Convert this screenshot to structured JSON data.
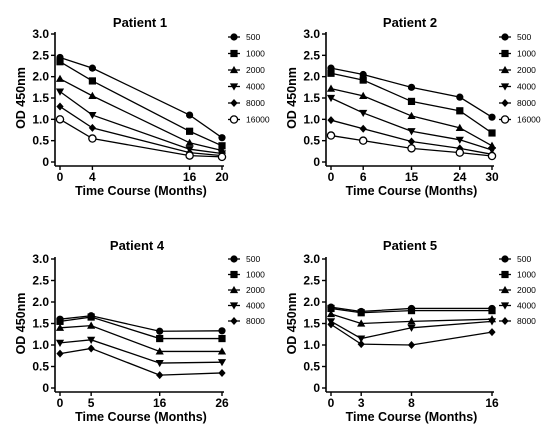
{
  "chart_data": [
    {
      "type": "line",
      "title": "Patient 1",
      "xlabel": "Time Course (Months)",
      "ylabel": "OD 450nm",
      "x": [
        0,
        4,
        16,
        20
      ],
      "x_ticks": [
        "0",
        "4",
        "16",
        "20"
      ],
      "y_ticks": [
        "0",
        "0.5",
        "1.0",
        "1.5",
        "2.0",
        "2.5",
        "3.0"
      ],
      "xlim": [
        0,
        20
      ],
      "ylim": [
        0,
        3.0
      ],
      "legend": "right",
      "series": [
        {
          "name": "500",
          "marker": "circle",
          "values": [
            2.45,
            2.2,
            1.1,
            0.57
          ]
        },
        {
          "name": "1000",
          "marker": "square",
          "values": [
            2.35,
            1.9,
            0.72,
            0.38
          ]
        },
        {
          "name": "2000",
          "marker": "triangle",
          "values": [
            1.95,
            1.55,
            0.45,
            0.27
          ]
        },
        {
          "name": "4000",
          "marker": "triangle-down",
          "values": [
            1.65,
            1.1,
            0.3,
            0.2
          ]
        },
        {
          "name": "8000",
          "marker": "diamond",
          "values": [
            1.3,
            0.8,
            0.22,
            0.15
          ]
        },
        {
          "name": "16000",
          "marker": "circle-open",
          "values": [
            1.0,
            0.55,
            0.15,
            0.12
          ]
        }
      ]
    },
    {
      "type": "line",
      "title": "Patient 2",
      "xlabel": "Time Course (Months)",
      "ylabel": "OD 450nm",
      "x": [
        0,
        6,
        15,
        24,
        30
      ],
      "x_ticks": [
        "0",
        "6",
        "15",
        "24",
        "30"
      ],
      "y_ticks": [
        "0",
        "0.5",
        "1.0",
        "1.5",
        "2.0",
        "2.5",
        "3.0"
      ],
      "xlim": [
        0,
        30
      ],
      "ylim": [
        0,
        3.0
      ],
      "legend": "right",
      "series": [
        {
          "name": "500",
          "marker": "circle",
          "values": [
            2.2,
            2.05,
            1.75,
            1.52,
            1.05
          ]
        },
        {
          "name": "1000",
          "marker": "square",
          "values": [
            2.08,
            1.92,
            1.42,
            1.2,
            0.68
          ]
        },
        {
          "name": "2000",
          "marker": "triangle",
          "values": [
            1.72,
            1.55,
            1.08,
            0.8,
            0.38
          ]
        },
        {
          "name": "4000",
          "marker": "triangle-down",
          "values": [
            1.5,
            1.15,
            0.72,
            0.52,
            0.28
          ]
        },
        {
          "name": "8000",
          "marker": "diamond",
          "values": [
            0.98,
            0.78,
            0.48,
            0.32,
            0.18
          ]
        },
        {
          "name": "16000",
          "marker": "circle-open",
          "values": [
            0.62,
            0.5,
            0.32,
            0.22,
            0.14
          ]
        }
      ]
    },
    {
      "type": "line",
      "title": "Patient 4",
      "xlabel": "Time Course (Months)",
      "ylabel": "OD 450nm",
      "x": [
        0,
        5,
        16,
        26
      ],
      "x_ticks": [
        "0",
        "5",
        "16",
        "26"
      ],
      "y_ticks": [
        "0",
        "0.5",
        "1.0",
        "1.5",
        "2.0",
        "2.5",
        "3.0"
      ],
      "xlim": [
        0,
        26
      ],
      "ylim": [
        0,
        3.0
      ],
      "legend": "right",
      "series": [
        {
          "name": "500",
          "marker": "circle",
          "values": [
            1.6,
            1.68,
            1.32,
            1.33
          ]
        },
        {
          "name": "1000",
          "marker": "square",
          "values": [
            1.55,
            1.65,
            1.15,
            1.15
          ]
        },
        {
          "name": "2000",
          "marker": "triangle",
          "values": [
            1.4,
            1.45,
            0.85,
            0.85
          ]
        },
        {
          "name": "4000",
          "marker": "triangle-down",
          "values": [
            1.05,
            1.12,
            0.58,
            0.6
          ]
        },
        {
          "name": "8000",
          "marker": "diamond",
          "values": [
            0.8,
            0.92,
            0.3,
            0.35
          ]
        }
      ]
    },
    {
      "type": "line",
      "title": "Patient 5",
      "xlabel": "Time Course (Months)",
      "ylabel": "OD 450nm",
      "x": [
        0,
        3,
        8,
        16
      ],
      "x_ticks": [
        "0",
        "3",
        "8",
        "16"
      ],
      "y_ticks": [
        "0",
        "0.5",
        "1.0",
        "1.5",
        "2.0",
        "2.5",
        "3.0"
      ],
      "xlim": [
        0,
        16
      ],
      "ylim": [
        0,
        3.0
      ],
      "legend": "right",
      "series": [
        {
          "name": "500",
          "marker": "circle",
          "values": [
            1.88,
            1.78,
            1.85,
            1.85
          ]
        },
        {
          "name": "1000",
          "marker": "square",
          "values": [
            1.85,
            1.75,
            1.8,
            1.8
          ]
        },
        {
          "name": "2000",
          "marker": "triangle",
          "values": [
            1.72,
            1.5,
            1.55,
            1.6
          ]
        },
        {
          "name": "4000",
          "marker": "triangle-down",
          "values": [
            1.55,
            1.15,
            1.4,
            1.55
          ]
        },
        {
          "name": "8000",
          "marker": "diamond",
          "values": [
            1.48,
            1.02,
            1.0,
            1.3
          ]
        }
      ]
    }
  ]
}
